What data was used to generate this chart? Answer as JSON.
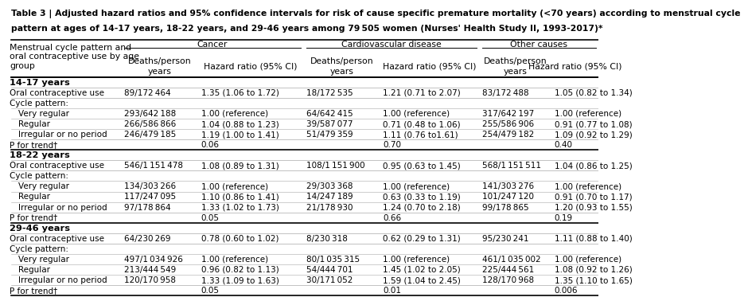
{
  "title_line1": "Table 3 | Adjusted hazard ratios and 95% confidence intervals for risk of cause specific premature mortality (<70 years) according to menstrual cycle",
  "title_line2": "pattern at ages of 14-17 years, 18-22 years, and 29-46 years among 79 505 women (Nurses' Health Study II, 1993-2017)*",
  "col_groups": [
    "Cancer",
    "Cardiovascular disease",
    "Other causes"
  ],
  "row_header": "Menstrual cycle pattern and\noral contraceptive use by age\ngroup",
  "sections": [
    {
      "section_title": "14-17 years",
      "rows": [
        {
          "label": "Oral contraceptive use",
          "indent": 0,
          "data": [
            "89/172 464",
            "1.35 (1.06 to 1.72)",
            "18/172 535",
            "1.21 (0.71 to 2.07)",
            "83/172 488",
            "1.05 (0.82 to 1.34)"
          ]
        },
        {
          "label": "Cycle pattern:",
          "indent": 0,
          "data": [
            "",
            "",
            "",
            "",
            "",
            ""
          ]
        },
        {
          "label": "Very regular",
          "indent": 1,
          "data": [
            "293/642 188",
            "1.00 (reference)",
            "64/642 415",
            "1.00 (reference)",
            "317/642 197",
            "1.00 (reference)"
          ]
        },
        {
          "label": "Regular",
          "indent": 1,
          "data": [
            "266/586 866",
            "1.04 (0.88 to 1.23)",
            "39/587 077",
            "0.71 (0.48 to 1.06)",
            "255/586 906",
            "0.91 (0.77 to 1.08)"
          ]
        },
        {
          "label": "Irregular or no period",
          "indent": 1,
          "data": [
            "246/479 185",
            "1.19 (1.00 to 1.41)",
            "51/479 359",
            "1.11 (0.76 to1.61)",
            "254/479 182",
            "1.09 (0.92 to 1.29)"
          ]
        },
        {
          "label": "P for trend†",
          "indent": 0,
          "data": [
            "",
            "0.06",
            "",
            "0.70",
            "",
            "0.40"
          ]
        }
      ]
    },
    {
      "section_title": "18-22 years",
      "rows": [
        {
          "label": "Oral contraceptive use",
          "indent": 0,
          "data": [
            "546/1 151 478",
            "1.08 (0.89 to 1.31)",
            "108/1 151 900",
            "0.95 (0.63 to 1.45)",
            "568/1 151 511",
            "1.04 (0.86 to 1.25)"
          ]
        },
        {
          "label": "Cycle pattern:",
          "indent": 0,
          "data": [
            "",
            "",
            "",
            "",
            "",
            ""
          ]
        },
        {
          "label": "Very regular",
          "indent": 1,
          "data": [
            "134/303 266",
            "1.00 (reference)",
            "29/303 368",
            "1.00 (reference)",
            "141/303 276",
            "1.00 (reference)"
          ]
        },
        {
          "label": "Regular",
          "indent": 1,
          "data": [
            "117/247 095",
            "1.10 (0.86 to 1.41)",
            "14/247 189",
            "0.63 (0.33 to 1.19)",
            "101/247 120",
            "0.91 (0.70 to 1.17)"
          ]
        },
        {
          "label": "Irregular or no period",
          "indent": 1,
          "data": [
            "97/178 864",
            "1.33 (1.02 to 1.73)",
            "21/178 930",
            "1.24 (0.70 to 2.18)",
            "99/178 865",
            "1.20 (0.93 to 1.55)"
          ]
        },
        {
          "label": "P for trend†",
          "indent": 0,
          "data": [
            "",
            "0.05",
            "",
            "0.66",
            "",
            "0.19"
          ]
        }
      ]
    },
    {
      "section_title": "29-46 years",
      "rows": [
        {
          "label": "Oral contraceptive use",
          "indent": 0,
          "data": [
            "64/230 269",
            "0.78 (0.60 to 1.02)",
            "8/230 318",
            "0.62 (0.29 to 1.31)",
            "95/230 241",
            "1.11 (0.88 to 1.40)"
          ]
        },
        {
          "label": "Cycle pattern:",
          "indent": 0,
          "data": [
            "",
            "",
            "",
            "",
            "",
            ""
          ]
        },
        {
          "label": "Very regular",
          "indent": 1,
          "data": [
            "497/1 034 926",
            "1.00 (reference)",
            "80/1 035 315",
            "1.00 (reference)",
            "461/1 035 002",
            "1.00 (reference)"
          ]
        },
        {
          "label": "Regular",
          "indent": 1,
          "data": [
            "213/444 549",
            "0.96 (0.82 to 1.13)",
            "54/444 701",
            "1.45 (1.02 to 2.05)",
            "225/444 561",
            "1.08 (0.92 to 1.26)"
          ]
        },
        {
          "label": "Irregular or no period",
          "indent": 1,
          "data": [
            "120/170 958",
            "1.33 (1.09 to 1.63)",
            "30/171 052",
            "1.59 (1.04 to 2.45)",
            "128/170 968",
            "1.35 (1.10 to 1.65)"
          ]
        },
        {
          "label": "P for trend†",
          "indent": 0,
          "data": [
            "",
            "0.05",
            "",
            "0.01",
            "",
            "0.006"
          ]
        }
      ]
    }
  ],
  "bg_color": "#ffffff",
  "text_color": "#000000",
  "line_color": "#000000",
  "title_fontsize": 7.8,
  "header_fontsize": 7.8,
  "cell_fontsize": 7.5,
  "section_fontsize": 8.2,
  "col_starts": [
    0.0,
    0.192,
    0.322,
    0.5,
    0.63,
    0.798,
    0.92
  ],
  "col_ends": [
    0.192,
    0.322,
    0.5,
    0.63,
    0.798,
    0.92,
    1.0
  ]
}
